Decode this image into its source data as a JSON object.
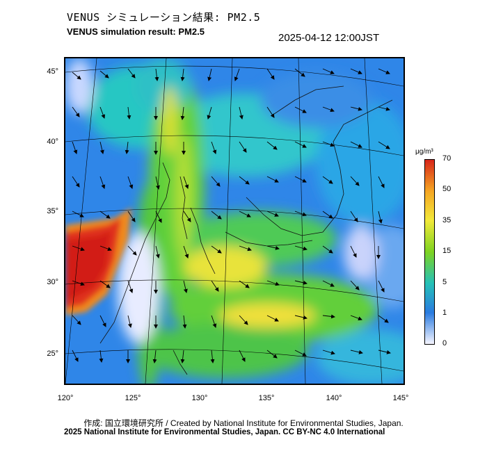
{
  "title_ja": "VENUS シミュレーション結果: PM2.5",
  "title_en": "VENUS simulation result: PM2.5",
  "timestamp": "2025-04-12 12:00JST",
  "x_ticks": [
    "120°",
    "125°",
    "130°",
    "135°",
    "140°",
    "145°"
  ],
  "y_ticks": [
    "45°",
    "40°",
    "35°",
    "30°",
    "25°"
  ],
  "colorbar": {
    "unit": "μg/m³",
    "labels": [
      "70",
      "50",
      "35",
      "15",
      "5",
      "1",
      "0"
    ],
    "colors": [
      "#d7261a",
      "#f5a623",
      "#f2e93a",
      "#7ed321",
      "#25c1b7",
      "#2a7be0",
      "#f5f5ff"
    ]
  },
  "credit_ja": "作成: 国立環境研究所 / Created by National Institute for Environmental Studies, Japan.",
  "credit_en": "2025 National Institute for Environmental Studies, Japan. CC BY-NC 4.0 International"
}
